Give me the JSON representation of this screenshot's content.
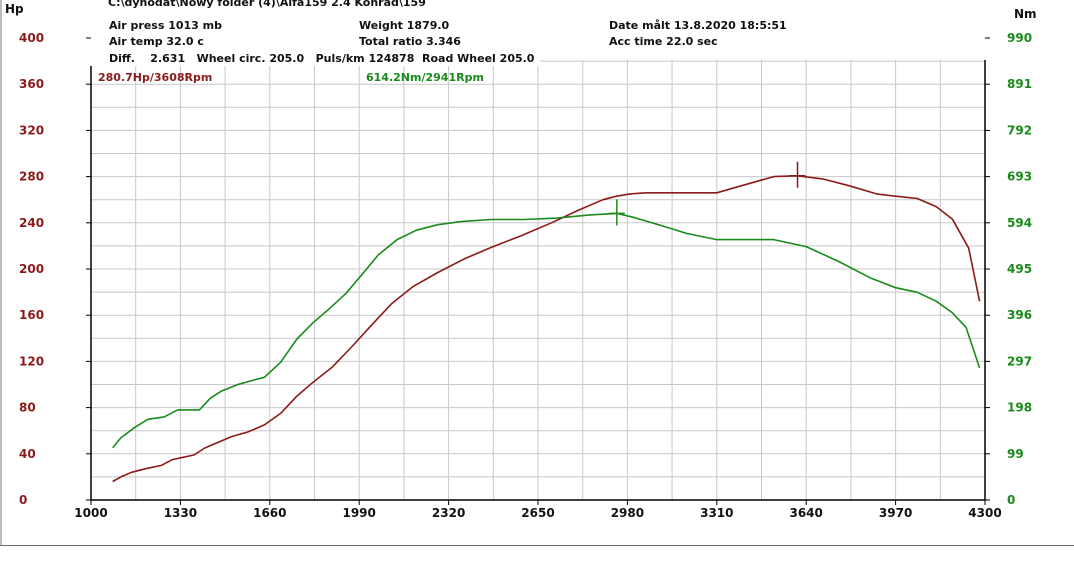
{
  "header": {
    "path": "C:\\dynodat\\Nowy folder (4)\\Alfa159 2.4 Konrad\\159",
    "air_press": "Air press  1013 mb",
    "air_temp": "Air temp  32.0 c",
    "diff": "Diff.    2.631   Wheel circ. 205.0   Puls/km 124878  Road Wheel 205.0",
    "weight": "Weight  1879.0",
    "total_ratio": "Total ratio 3.346",
    "date": "Date målt 13.8.2020 18:5:51",
    "acc_time": "Acc time  22.0 sec"
  },
  "peaks": {
    "hp_label": "280.7Hp/3608Rpm",
    "nm_label": "614.2Nm/2941Rpm"
  },
  "colors": {
    "power": "#8b1a1a",
    "torque": "#1a8a1a",
    "grid": "#c8c8c8",
    "axis": "#000000"
  },
  "chart_data": {
    "type": "line",
    "left_axis": {
      "label": "Hp",
      "ticks": [
        0,
        40,
        80,
        120,
        160,
        200,
        240,
        280,
        320,
        360,
        400
      ],
      "range": [
        0,
        400
      ]
    },
    "right_axis": {
      "label": "Nm",
      "ticks": [
        "0",
        "99",
        "198",
        "297",
        "396",
        "495",
        "594",
        "693",
        "792",
        "891",
        "990"
      ],
      "range": [
        0,
        990
      ]
    },
    "x_axis": {
      "ticks": [
        1000,
        1330,
        1660,
        1990,
        2320,
        2650,
        2980,
        3310,
        3640,
        3970,
        4300
      ],
      "range": [
        1000,
        4300
      ]
    },
    "grid": true,
    "series": [
      {
        "unit": "Hp",
        "axis": "left",
        "x": [
          1080,
          1110,
          1150,
          1200,
          1260,
          1300,
          1340,
          1380,
          1420,
          1460,
          1520,
          1580,
          1640,
          1700,
          1760,
          1820,
          1890,
          1960,
          2030,
          2110,
          2190,
          2280,
          2380,
          2480,
          2590,
          2700,
          2800,
          2890,
          2940,
          2990,
          3050,
          3150,
          3310,
          3400,
          3520,
          3608,
          3700,
          3800,
          3900,
          3970,
          4050,
          4120,
          4180,
          4240,
          4280
        ],
        "values": [
          16,
          20,
          24,
          27,
          30,
          35,
          37,
          39,
          45,
          49,
          55,
          59,
          65,
          75,
          90,
          102,
          115,
          132,
          150,
          170,
          185,
          197,
          209,
          219,
          229,
          240,
          251,
          260,
          263,
          265,
          266,
          266,
          266,
          272,
          280,
          280.7,
          278,
          272,
          265,
          263,
          261,
          254,
          243,
          218,
          172
        ]
      },
      {
        "unit": "Nm",
        "axis": "right",
        "x": [
          1080,
          1110,
          1160,
          1210,
          1270,
          1320,
          1350,
          1400,
          1440,
          1480,
          1540,
          1600,
          1640,
          1700,
          1760,
          1820,
          1880,
          1940,
          2000,
          2060,
          2130,
          2200,
          2280,
          2370,
          2480,
          2600,
          2720,
          2840,
          2941,
          3000,
          3100,
          3200,
          3310,
          3400,
          3520,
          3640,
          3760,
          3880,
          3970,
          4050,
          4120,
          4180,
          4230,
          4280
        ],
        "values": [
          112,
          133,
          155,
          173,
          178,
          193,
          193,
          193,
          218,
          233,
          247,
          257,
          263,
          295,
          345,
          380,
          410,
          442,
          483,
          525,
          558,
          578,
          590,
          597,
          601,
          601,
          604,
          611,
          614.2,
          606,
          589,
          571,
          558,
          558,
          558,
          543,
          511,
          475,
          455,
          445,
          426,
          401,
          370,
          283
        ]
      }
    ],
    "markers": [
      {
        "series": 0,
        "x": 3608,
        "value": 280.7
      },
      {
        "series": 1,
        "x": 2941,
        "value": 614.2
      }
    ]
  }
}
